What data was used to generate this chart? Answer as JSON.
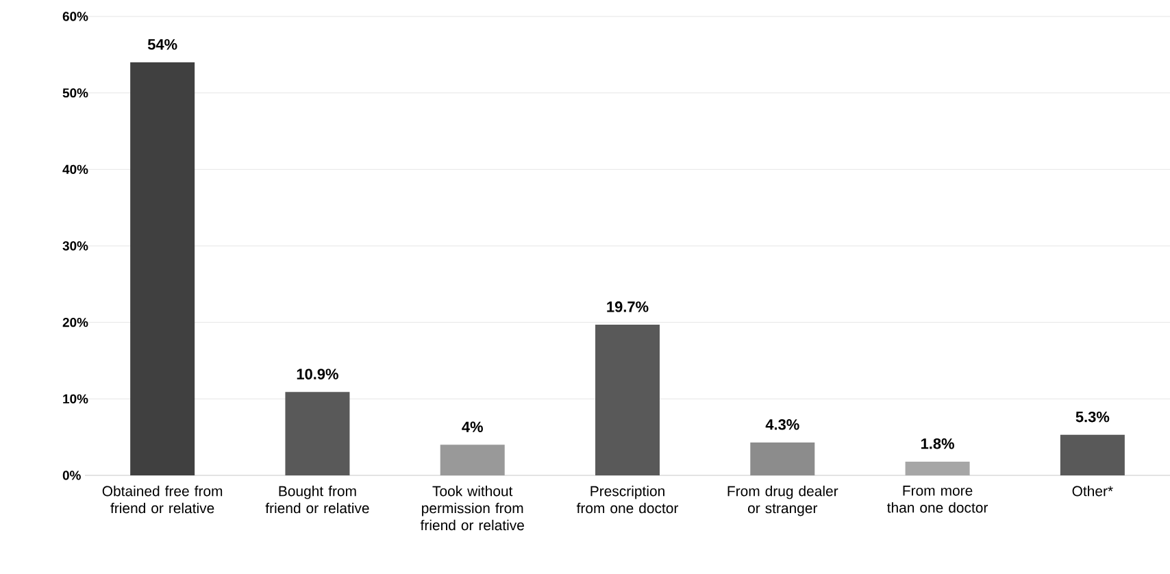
{
  "chart_data": {
    "type": "bar",
    "categories": [
      "Obtained free from friend or relative",
      "Bought from friend or relative",
      "Took without permission from friend or relative",
      "Prescription from one doctor",
      "From drug dealer or stranger",
      "From more than one doctor",
      "Other*"
    ],
    "values": [
      54,
      10.9,
      4,
      19.7,
      4.3,
      1.8,
      5.3
    ],
    "colors": [
      "#404040",
      "#595959",
      "#999999",
      "#595959",
      "#8c8c8c",
      "#a6a6a6",
      "#595959"
    ],
    "value_labels": [
      "54%",
      "10.9%",
      "4%",
      "19.7%",
      "4.3%",
      "1.8%",
      "5.3%"
    ],
    "ylim": [
      0,
      60
    ],
    "yticks": [
      {
        "value": 0,
        "label": "0%"
      },
      {
        "value": 10,
        "label": "10%"
      },
      {
        "value": 20,
        "label": "20%"
      },
      {
        "value": 30,
        "label": "30%"
      },
      {
        "value": 40,
        "label": "40%"
      },
      {
        "value": 50,
        "label": "50%"
      },
      {
        "value": 60,
        "label": "60%"
      }
    ],
    "grid": "y"
  }
}
